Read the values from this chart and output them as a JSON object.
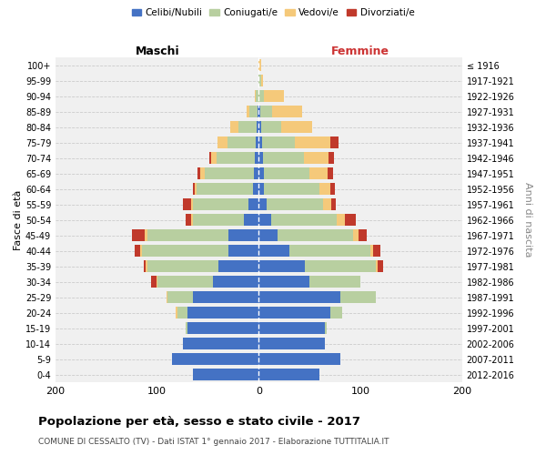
{
  "age_groups": [
    "0-4",
    "5-9",
    "10-14",
    "15-19",
    "20-24",
    "25-29",
    "30-34",
    "35-39",
    "40-44",
    "45-49",
    "50-54",
    "55-59",
    "60-64",
    "65-69",
    "70-74",
    "75-79",
    "80-84",
    "85-89",
    "90-94",
    "95-99",
    "100+"
  ],
  "birth_years": [
    "2012-2016",
    "2007-2011",
    "2002-2006",
    "1997-2001",
    "1992-1996",
    "1987-1991",
    "1982-1986",
    "1977-1981",
    "1972-1976",
    "1967-1971",
    "1962-1966",
    "1957-1961",
    "1952-1956",
    "1947-1951",
    "1942-1946",
    "1937-1941",
    "1932-1936",
    "1927-1931",
    "1922-1926",
    "1917-1921",
    "≤ 1916"
  ],
  "male": {
    "celibi": [
      65,
      85,
      75,
      70,
      70,
      65,
      45,
      40,
      30,
      30,
      15,
      10,
      6,
      5,
      4,
      3,
      2,
      1,
      0,
      0,
      0
    ],
    "coniugati": [
      0,
      0,
      0,
      2,
      10,
      25,
      55,
      70,
      85,
      80,
      50,
      55,
      55,
      48,
      38,
      28,
      18,
      8,
      3,
      0,
      0
    ],
    "vedovi": [
      0,
      0,
      0,
      0,
      2,
      1,
      1,
      1,
      2,
      2,
      2,
      2,
      2,
      5,
      5,
      10,
      8,
      3,
      1,
      0,
      0
    ],
    "divorziati": [
      0,
      0,
      0,
      0,
      0,
      0,
      5,
      2,
      5,
      13,
      5,
      8,
      2,
      2,
      2,
      0,
      0,
      0,
      0,
      0,
      0
    ]
  },
  "female": {
    "nubili": [
      60,
      80,
      65,
      65,
      70,
      80,
      50,
      45,
      30,
      18,
      12,
      8,
      5,
      5,
      4,
      3,
      2,
      1,
      0,
      0,
      0
    ],
    "coniugate": [
      0,
      0,
      0,
      2,
      12,
      35,
      50,
      70,
      80,
      75,
      65,
      55,
      55,
      45,
      40,
      32,
      20,
      12,
      5,
      2,
      0
    ],
    "vedove": [
      0,
      0,
      0,
      0,
      0,
      0,
      0,
      2,
      2,
      5,
      8,
      8,
      10,
      18,
      25,
      35,
      30,
      30,
      20,
      2,
      2
    ],
    "divorziate": [
      0,
      0,
      0,
      0,
      0,
      0,
      0,
      5,
      8,
      8,
      10,
      5,
      5,
      5,
      5,
      8,
      0,
      0,
      0,
      0,
      0
    ]
  },
  "colors": {
    "celibi": "#4472c4",
    "coniugati": "#b8cfa0",
    "vedovi": "#f5c97a",
    "divorziati": "#c0392b"
  },
  "title": "Popolazione per età, sesso e stato civile - 2017",
  "subtitle": "COMUNE DI CESSALTO (TV) - Dati ISTAT 1° gennaio 2017 - Elaborazione TUTTITALIA.IT",
  "ylabel_left": "Fasce di età",
  "ylabel_right": "Anni di nascita",
  "xlabel_left": "Maschi",
  "xlabel_right": "Femmine",
  "xlim": 200,
  "bg_color": "#f0f0f0",
  "legend_labels": [
    "Celibi/Nubili",
    "Coniugati/e",
    "Vedovi/e",
    "Divorziati/e"
  ]
}
